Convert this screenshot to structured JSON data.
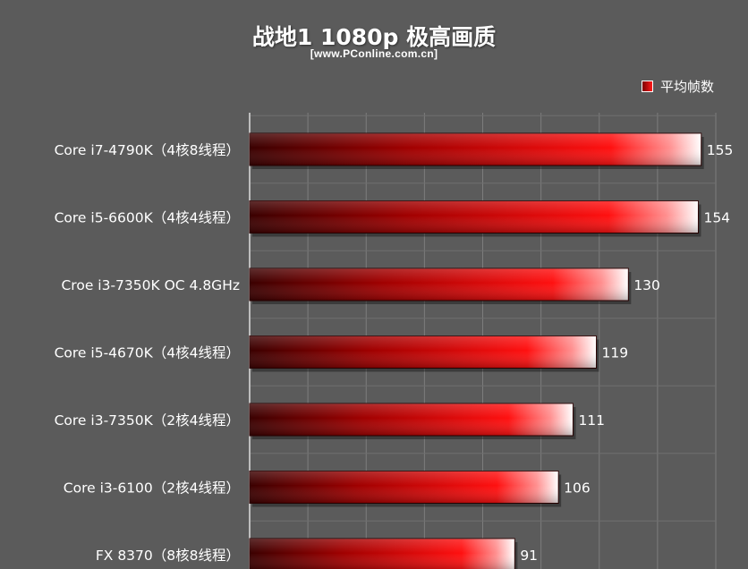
{
  "chart_data": {
    "type": "bar",
    "orientation": "horizontal",
    "title": "战地1 1080p 极高画质",
    "subtitle": "[www.PConline.com.cn]",
    "legend": {
      "label": "平均帧数",
      "position": "top-right"
    },
    "categories": [
      "Core i7-4790K（4核8线程）",
      "Core i5-6600K（4核4线程）",
      "Croe i3-7350K OC 4.8GHz",
      "Core i5-4670K（4核4线程）",
      "Core i3-7350K（2核4线程）",
      "Core i3-6100（2核4线程）",
      "FX 8370（8核8线程）"
    ],
    "series": [
      {
        "name": "平均帧数",
        "values": [
          155,
          154,
          130,
          119,
          111,
          106,
          91
        ]
      }
    ],
    "xlim": [
      0,
      160
    ],
    "grid": true,
    "colors": {
      "bar_dark": "#5a0000",
      "bar_mid": "#ff1010",
      "bar_light": "#ffffff"
    }
  }
}
